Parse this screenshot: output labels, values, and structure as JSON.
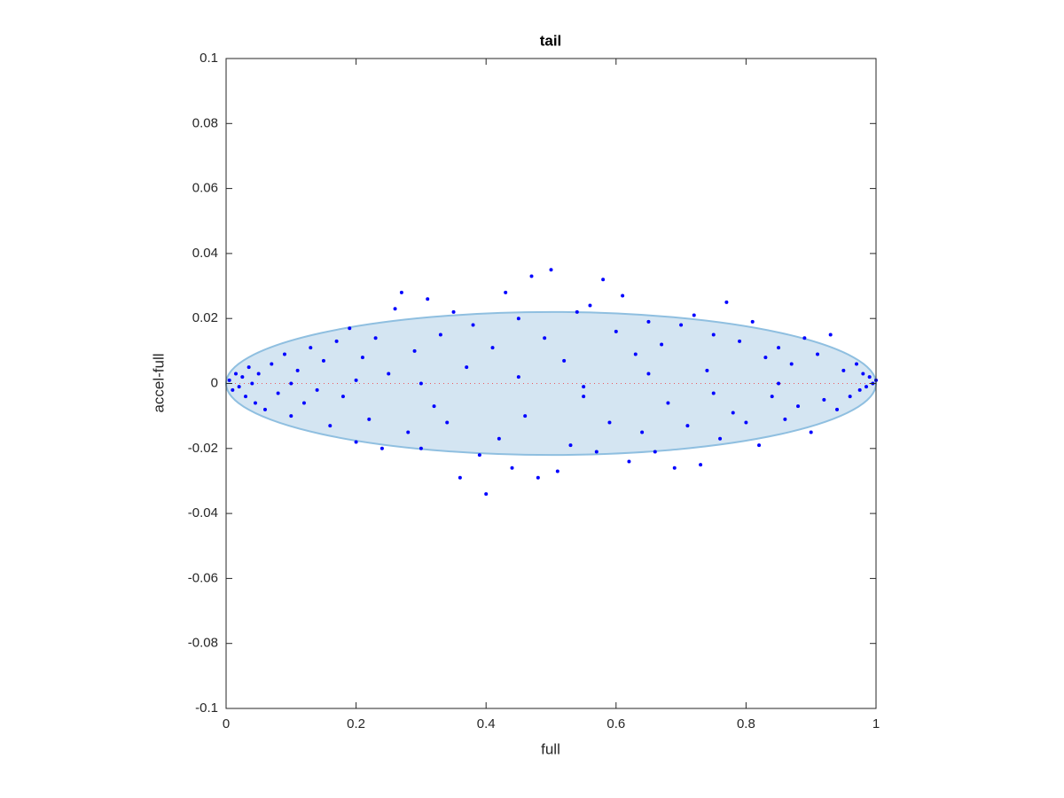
{
  "chart_data": {
    "type": "scatter",
    "title": "tail",
    "x_label": "full",
    "y_label": "accel-full",
    "xlim": [
      0,
      1
    ],
    "ylim": [
      -0.1,
      0.1
    ],
    "xticks": [
      0,
      0.2,
      0.4,
      0.6,
      0.8,
      1
    ],
    "yticks": [
      -0.1,
      -0.08,
      -0.06,
      -0.04,
      -0.02,
      0,
      0.02,
      0.04,
      0.06,
      0.08,
      0.1
    ],
    "grid": false,
    "color": "#0000ff",
    "ellipse": {
      "cx": 0.5,
      "cy": 0,
      "rx": 0.5,
      "ry": 0.022,
      "fill": "#d4e5f2",
      "edge": "#8fbfe0"
    },
    "reference_line": {
      "y": 0,
      "color": "#ff0000"
    },
    "x": [
      0.005,
      0.01,
      0.015,
      0.02,
      0.025,
      0.03,
      0.035,
      0.04,
      0.045,
      0.05,
      0.06,
      0.07,
      0.08,
      0.09,
      0.1,
      0.11,
      0.12,
      0.13,
      0.14,
      0.15,
      0.16,
      0.17,
      0.18,
      0.19,
      0.2,
      0.21,
      0.22,
      0.23,
      0.24,
      0.25,
      0.26,
      0.27,
      0.28,
      0.29,
      0.3,
      0.31,
      0.32,
      0.33,
      0.34,
      0.35,
      0.36,
      0.37,
      0.38,
      0.39,
      0.4,
      0.41,
      0.42,
      0.43,
      0.44,
      0.45,
      0.46,
      0.47,
      0.48,
      0.49,
      0.5,
      0.51,
      0.52,
      0.53,
      0.54,
      0.55,
      0.56,
      0.57,
      0.58,
      0.59,
      0.6,
      0.61,
      0.62,
      0.63,
      0.64,
      0.65,
      0.66,
      0.67,
      0.68,
      0.69,
      0.7,
      0.71,
      0.72,
      0.73,
      0.74,
      0.75,
      0.76,
      0.77,
      0.78,
      0.79,
      0.8,
      0.81,
      0.82,
      0.83,
      0.84,
      0.85,
      0.86,
      0.87,
      0.88,
      0.89,
      0.9,
      0.91,
      0.92,
      0.93,
      0.94,
      0.95,
      0.96,
      0.97,
      0.975,
      0.98,
      0.985,
      0.99,
      0.995,
      1.0,
      0.3,
      0.45,
      0.55,
      0.65,
      0.75,
      0.2,
      0.1,
      0.85
    ],
    "values": [
      0.001,
      -0.002,
      0.003,
      -0.001,
      0.002,
      -0.004,
      0.005,
      0.0,
      -0.006,
      0.003,
      -0.008,
      0.006,
      -0.003,
      0.009,
      -0.01,
      0.004,
      -0.006,
      0.011,
      -0.002,
      0.007,
      -0.013,
      0.013,
      -0.004,
      0.017,
      -0.018,
      0.008,
      -0.011,
      0.014,
      -0.02,
      0.003,
      0.023,
      0.028,
      -0.015,
      0.01,
      -0.02,
      0.026,
      -0.007,
      0.015,
      -0.012,
      0.022,
      -0.029,
      0.005,
      0.018,
      -0.022,
      -0.034,
      0.011,
      -0.017,
      0.028,
      -0.026,
      0.02,
      -0.01,
      0.033,
      -0.029,
      0.014,
      0.035,
      -0.027,
      0.007,
      -0.019,
      0.022,
      -0.004,
      0.024,
      -0.021,
      0.032,
      -0.012,
      0.016,
      0.027,
      -0.024,
      0.009,
      -0.015,
      0.019,
      -0.021,
      0.012,
      -0.006,
      -0.026,
      0.018,
      -0.013,
      0.021,
      -0.025,
      0.004,
      0.015,
      -0.017,
      0.025,
      -0.009,
      0.013,
      -0.012,
      0.019,
      -0.019,
      0.008,
      -0.004,
      0.011,
      -0.011,
      0.006,
      -0.007,
      0.014,
      -0.015,
      0.009,
      -0.005,
      0.015,
      -0.008,
      0.004,
      -0.004,
      0.006,
      -0.002,
      0.003,
      -0.001,
      0.002,
      0.0,
      0.001,
      0.0,
      0.002,
      -0.001,
      0.003,
      -0.003,
      0.001,
      0.0,
      0.0
    ]
  }
}
